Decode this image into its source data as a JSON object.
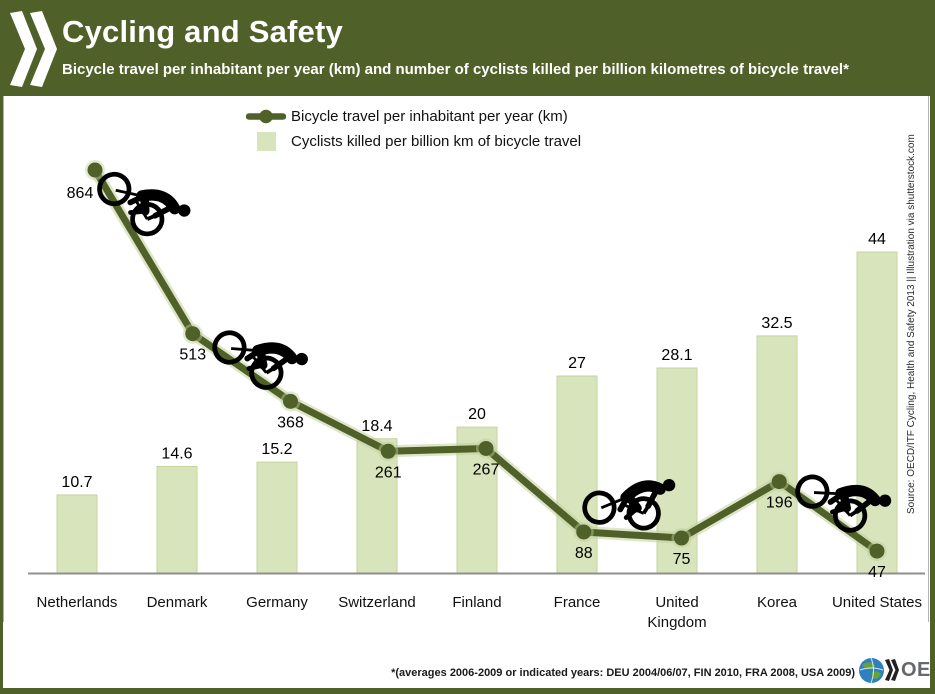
{
  "header": {
    "title": "Cycling and Safety",
    "subtitle": "Bicycle travel per inhabitant per year (km) and number of cyclists killed per billion kilometres of bicycle travel*",
    "bg_color": "#4f6128",
    "text_color": "#ffffff"
  },
  "legend": {
    "items": [
      {
        "marker": "line-with-dot",
        "label": "Bicycle travel per inhabitant per year (km)",
        "color": "#4f6128"
      },
      {
        "marker": "square",
        "label": "Cyclists killed per billion km of bicycle travel",
        "color": "#d8e4bc"
      }
    ]
  },
  "chart_data": {
    "type": "bar+line combo",
    "title": "Cycling and Safety",
    "categories": [
      "Netherlands",
      "Denmark",
      "Germany",
      "Switzerland",
      "Finland",
      "France",
      "United Kingdom",
      "Korea",
      "United States"
    ],
    "category_label_lines": [
      [
        "Netherlands"
      ],
      [
        "Denmark"
      ],
      [
        "Germany"
      ],
      [
        "Switzerland"
      ],
      [
        "Finland"
      ],
      [
        "France"
      ],
      [
        "United",
        "Kingdom"
      ],
      [
        "Korea"
      ],
      [
        "United States"
      ]
    ],
    "series": [
      {
        "name": "Bicycle travel per inhabitant per year (km)",
        "type": "line",
        "color": "#4f6128",
        "values": [
          864,
          513,
          368,
          261,
          267,
          88,
          75,
          196,
          47
        ],
        "value_labels": [
          "864",
          "513",
          "368",
          "261",
          "267",
          "88",
          "75",
          "196",
          "47"
        ]
      },
      {
        "name": "Cyclists killed per billion km of bicycle travel",
        "type": "bar",
        "color": "#d8e4bc",
        "values": [
          10.7,
          14.6,
          15.2,
          18.4,
          20,
          27,
          28.1,
          32.5,
          44
        ],
        "value_labels": [
          "10.7",
          "14.6",
          "15.2",
          "18.4",
          "20",
          "27",
          "28.1",
          "32.5",
          "44"
        ]
      }
    ],
    "annotations": [
      "four black cyclist pictograms riding along the line"
    ],
    "axis": {
      "x_axis_line": true,
      "y_axis_labels_shown": false,
      "gridlines": false,
      "data_labels": "shown at every point and bar"
    },
    "legend_position": "top-center"
  },
  "footer": {
    "footnote": "*(averages 2006-2009 or indicated years: DEU 2004/06/07, FIN 2010, FRA 2008, USA 2009)",
    "logo_text": "OECD"
  },
  "source_note": "Source: OECD/ITF Cycling, Health and Safety 2013 || Illustration via shutterstock.com",
  "colors": {
    "olive": "#4f6128",
    "bar_fill": "#d8e4bc",
    "bar_stroke": "#c6d39f",
    "line_halo": "#c2cf9c",
    "axis": "#8f8f8f",
    "label_text": "#000000"
  }
}
